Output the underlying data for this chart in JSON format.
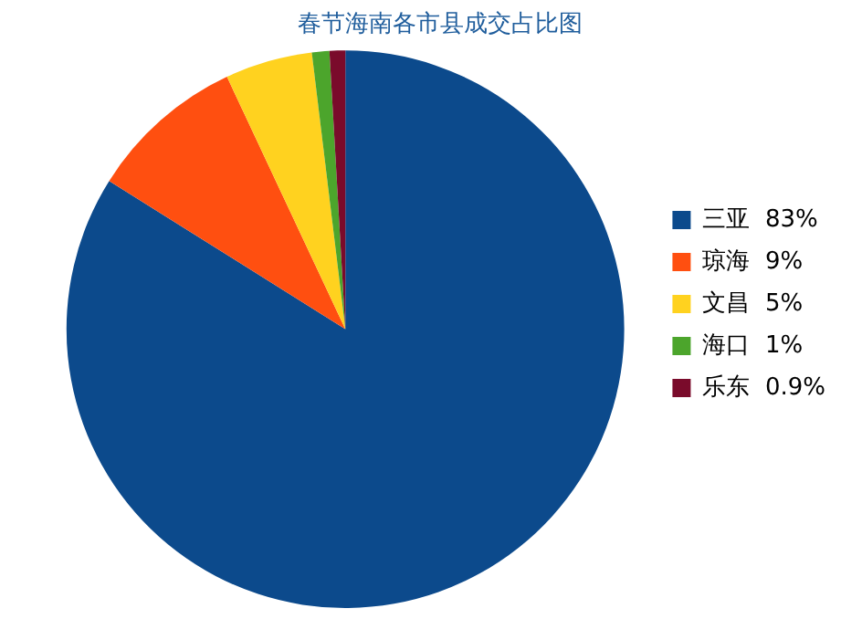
{
  "chart_data": {
    "type": "pie",
    "title": "春节海南各市县成交占比图",
    "categories": [
      "三亚",
      "琼海",
      "文昌",
      "海口",
      "乐东"
    ],
    "values": [
      83,
      9,
      5,
      1,
      0.9
    ],
    "value_labels": [
      "83%",
      "9%",
      "5%",
      "1%",
      "0.9%"
    ],
    "colors": [
      "#0c4a8c",
      "#ff4f10",
      "#ffd21f",
      "#4ca52c",
      "#7a0b2b"
    ],
    "legend": "right"
  }
}
